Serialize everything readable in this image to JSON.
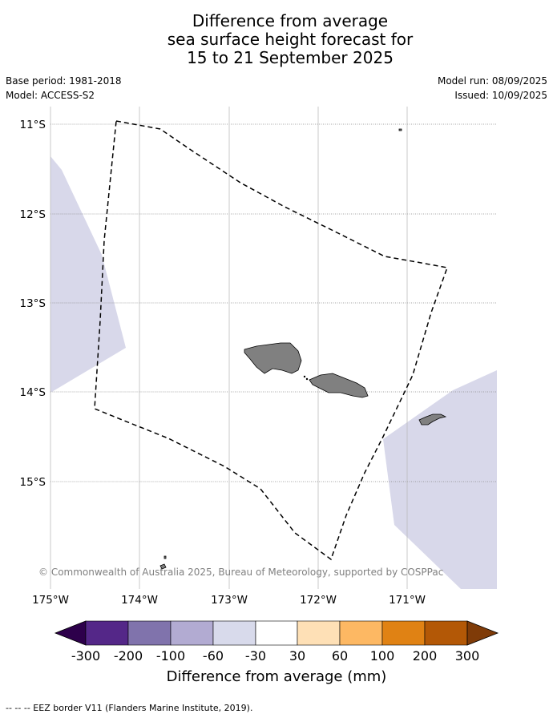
{
  "title": {
    "line1": "Difference from average",
    "line2": "sea surface height forecast for",
    "line3": "15 to 21 September 2025"
  },
  "meta": {
    "base_period": "Base period: 1981-2018",
    "model": "Model: ACCESS-S2",
    "model_run": "Model run: 08/09/2025",
    "issued": "Issued: 10/09/2025"
  },
  "map": {
    "lat_labels": [
      "11°S",
      "12°S",
      "13°S",
      "14°S",
      "15°S"
    ],
    "lon_labels": [
      "175°W",
      "174°W",
      "173°W",
      "172°W",
      "171°W"
    ],
    "copyright": "© Commonwealth of Australia 2025, Bureau of Meteorology, supported by COSPPac",
    "land_color": "#808080",
    "anomaly_fill_color": "#d8d8ea"
  },
  "colorbar": {
    "title": "Difference from average (mm)",
    "tick_labels": [
      "-300",
      "-200",
      "-100",
      "-60",
      "-30",
      "30",
      "60",
      "100",
      "200",
      "300"
    ],
    "colors": [
      "#2d004b",
      "#542788",
      "#8073ac",
      "#b2abd2",
      "#d8daeb",
      "#ffffff",
      "#fee0b6",
      "#fdb863",
      "#e08214",
      "#b35806",
      "#7f3b08"
    ]
  },
  "footer": {
    "legend": "--  --  -- EEZ border V11 (Flanders Marine Institute, 2019)."
  }
}
